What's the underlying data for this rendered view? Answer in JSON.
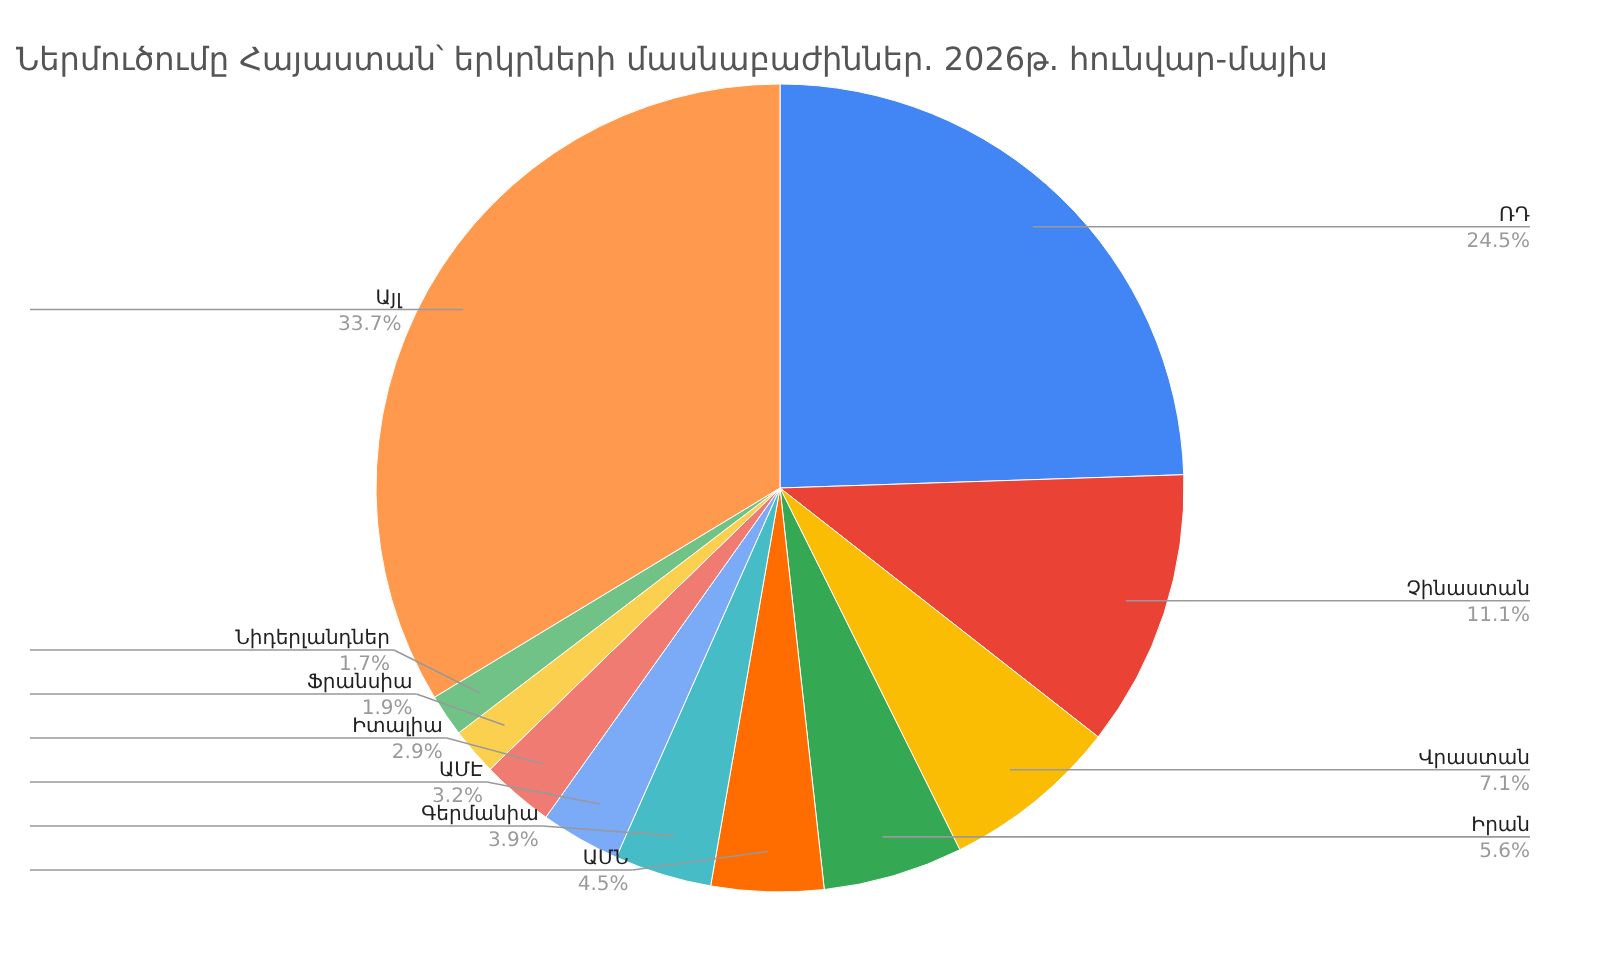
{
  "chart_data": {
    "type": "pie",
    "title": "Ներմուծումը Հայաստան՝ երկրների մասնաբաժիններ. 2026թ. հունվար-մայիս",
    "categories": [
      "ՌԴ",
      "Չինաստան",
      "Վրաստան",
      "Իրան",
      "ԱՄՆ",
      "Գերմանիա",
      "ԱՄԷ",
      "Իտալիա",
      "Ֆրանսիա",
      "Նիդերլանդներ",
      "Այլ"
    ],
    "values": [
      24.5,
      11.1,
      7.1,
      5.6,
      4.5,
      3.9,
      3.2,
      2.9,
      1.9,
      1.7,
      33.7
    ],
    "value_labels": [
      "24.5%",
      "11.1%",
      "7.1%",
      "5.6%",
      "4.5%",
      "3.9%",
      "3.2%",
      "2.9%",
      "1.9%",
      "1.7%",
      "33.7%"
    ],
    "colors": [
      "#4285f4",
      "#ea4335",
      "#fbbc04",
      "#34a853",
      "#ff6d01",
      "#46bdc6",
      "#7baaf7",
      "#f07b72",
      "#fcd04f",
      "#71c287",
      "#ff994d"
    ]
  }
}
